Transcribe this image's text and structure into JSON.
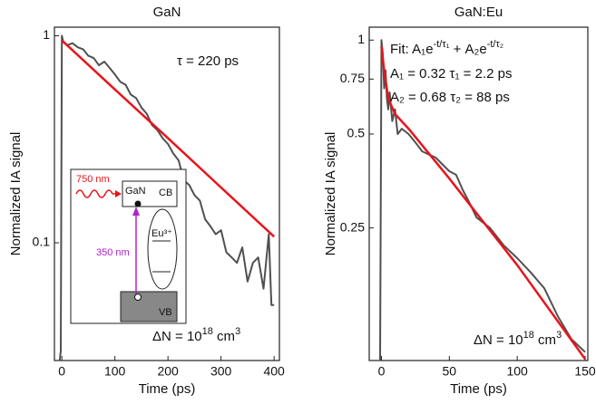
{
  "chart_data": [
    {
      "type": "line",
      "title": "GaN",
      "xlabel": "Time (ps)",
      "ylabel": "Normalized IA signal",
      "log_y": true,
      "xlim": [
        -14,
        410
      ],
      "ylim": [
        0.027,
        1.1
      ],
      "xticks": [
        0,
        100,
        200,
        300,
        400
      ],
      "yticks": [
        1,
        0.1
      ],
      "annotations": {
        "tau": "τ = 220 ps",
        "density": [
          "ΔN = 10",
          "18",
          " cm",
          "3"
        ]
      },
      "inset_labels": {
        "pump": "750 nm",
        "gan": "GaN",
        "cb": "CB",
        "probe": "350 nm",
        "eu": "Eu³⁺",
        "vb": "VB"
      },
      "series": [
        {
          "color": "#505050",
          "x": [
            -4,
            -2,
            0,
            3,
            10,
            20,
            30,
            40,
            50,
            60,
            70,
            80,
            90,
            100,
            110,
            120,
            130,
            140,
            150,
            160,
            170,
            180,
            190,
            200,
            210,
            220,
            230,
            240,
            250,
            260,
            270,
            280,
            290,
            300,
            310,
            320,
            330,
            340,
            350,
            360,
            370,
            380,
            390,
            395,
            400
          ],
          "values": [
            0.027,
            0.03,
            1.0,
            0.93,
            0.9,
            0.92,
            0.88,
            0.86,
            0.8,
            0.78,
            0.72,
            0.75,
            0.7,
            0.65,
            0.6,
            0.58,
            0.52,
            0.5,
            0.45,
            0.42,
            0.37,
            0.35,
            0.32,
            0.3,
            0.27,
            0.25,
            0.2,
            0.19,
            0.17,
            0.16,
            0.13,
            0.12,
            0.11,
            0.115,
            0.09,
            0.085,
            0.08,
            0.095,
            0.065,
            0.08,
            0.085,
            0.06,
            0.11,
            0.05,
            0.05
          ]
        },
        {
          "color": "#e8141b",
          "x": [
            0,
            100,
            200,
            300,
            400
          ],
          "values": [
            0.95,
            0.55,
            0.32,
            0.185,
            0.107
          ]
        }
      ]
    },
    {
      "type": "line",
      "title": "GaN:Eu",
      "xlabel": "Time (ps)",
      "ylabel": "Normalized IA signal",
      "log_y": true,
      "xlim": [
        -9,
        152
      ],
      "ylim": [
        0.094,
        1.1
      ],
      "xticks": [
        0,
        50,
        100,
        150
      ],
      "yticks": [
        1,
        0.75,
        0.5,
        0.25
      ],
      "annotations": {
        "fit": [
          "Fit: A₁e",
          "-t/τ₁",
          " + A₂e",
          "-t/τ₂"
        ],
        "a1": "A₁ = 0.32  τ₁ = 2.2 ps",
        "a2": "A₂ = 0.68  τ₂ = 88 ps",
        "density": [
          "ΔN = 10",
          "18",
          " cm",
          "3"
        ]
      },
      "series": [
        {
          "color": "#505050",
          "x": [
            -1,
            0,
            1,
            2,
            3,
            4,
            5,
            6,
            8,
            10,
            12,
            15,
            20,
            25,
            30,
            40,
            50,
            55,
            60,
            65,
            70,
            80,
            90,
            100,
            110,
            120,
            130,
            140,
            150
          ],
          "values": [
            0.094,
            1.0,
            0.9,
            0.7,
            0.8,
            0.65,
            0.6,
            0.68,
            0.55,
            0.6,
            0.5,
            0.52,
            0.5,
            0.47,
            0.44,
            0.42,
            0.38,
            0.37,
            0.33,
            0.3,
            0.27,
            0.25,
            0.22,
            0.2,
            0.18,
            0.16,
            0.13,
            0.11,
            0.1
          ]
        },
        {
          "color": "#e8141b",
          "x": [
            0,
            2,
            5,
            10,
            20,
            50,
            100,
            150
          ],
          "values": [
            0.95,
            0.8,
            0.65,
            0.58,
            0.52,
            0.36,
            0.19,
            0.095
          ]
        }
      ]
    }
  ]
}
